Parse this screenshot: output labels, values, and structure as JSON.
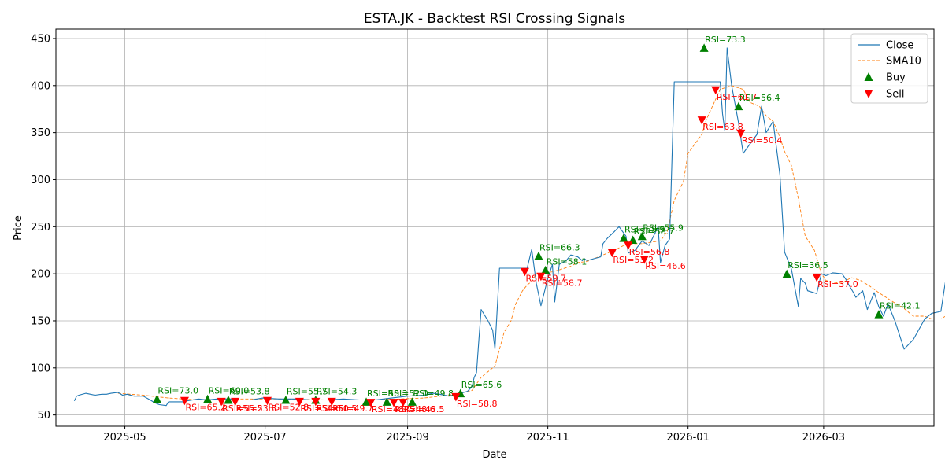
{
  "chart_data": {
    "type": "line",
    "title": "ESTA.JK - Backtest RSI Crossing Signals",
    "xlabel": "Date",
    "ylabel": "Price",
    "xlim": [
      "2025-04-01",
      "2026-04-18"
    ],
    "ylim": [
      38,
      460
    ],
    "x_ticks": [
      "2025-05",
      "2025-07",
      "2025-09",
      "2025-11",
      "2026-01",
      "2026-03"
    ],
    "y_ticks": [
      50,
      100,
      150,
      200,
      250,
      300,
      350,
      400,
      450
    ],
    "grid": true,
    "legend_position": "top-right",
    "legend": [
      "Close",
      "SMA10",
      "Buy",
      "Sell"
    ],
    "colors": {
      "close": "#1f77b4",
      "sma": "#ff7f0e",
      "buy": "#008000",
      "sell": "#ff0000"
    },
    "series": [
      {
        "name": "Close",
        "points": [
          [
            "2025-04-09",
            65
          ],
          [
            "2025-04-10",
            70
          ],
          [
            "2025-04-11",
            71
          ],
          [
            "2025-04-14",
            73
          ],
          [
            "2025-04-16",
            72
          ],
          [
            "2025-04-18",
            71
          ],
          [
            "2025-04-21",
            72
          ],
          [
            "2025-04-23",
            72
          ],
          [
            "2025-04-25",
            73
          ],
          [
            "2025-04-28",
            74
          ],
          [
            "2025-04-30",
            71
          ],
          [
            "2025-05-02",
            72
          ],
          [
            "2025-05-05",
            70
          ],
          [
            "2025-05-07",
            70
          ],
          [
            "2025-05-09",
            70
          ],
          [
            "2025-05-12",
            66
          ],
          [
            "2025-05-14",
            63
          ],
          [
            "2025-05-16",
            61
          ],
          [
            "2025-05-19",
            60
          ],
          [
            "2025-05-20",
            64
          ],
          [
            "2025-05-23",
            64
          ],
          [
            "2025-05-26",
            64
          ],
          [
            "2025-05-28",
            65
          ],
          [
            "2025-06-02",
            67
          ],
          [
            "2025-06-06",
            66
          ],
          [
            "2025-06-10",
            67
          ],
          [
            "2025-06-16",
            67
          ],
          [
            "2025-06-20",
            66
          ],
          [
            "2025-06-25",
            66
          ],
          [
            "2025-06-30",
            68
          ],
          [
            "2025-07-07",
            67
          ],
          [
            "2025-07-14",
            67
          ],
          [
            "2025-07-21",
            66
          ],
          [
            "2025-07-28",
            66
          ],
          [
            "2025-08-04",
            67
          ],
          [
            "2025-08-11",
            66
          ],
          [
            "2025-08-18",
            66
          ],
          [
            "2025-08-25",
            68
          ],
          [
            "2025-09-01",
            70
          ],
          [
            "2025-09-08",
            71
          ],
          [
            "2025-09-12",
            73
          ],
          [
            "2025-09-15",
            72
          ],
          [
            "2025-09-19",
            70
          ],
          [
            "2025-09-24",
            73
          ],
          [
            "2025-09-27",
            75
          ],
          [
            "2025-09-29",
            80
          ],
          [
            "2025-09-30",
            90
          ],
          [
            "2025-10-01",
            95
          ],
          [
            "2025-10-02",
            130
          ],
          [
            "2025-10-03",
            162
          ],
          [
            "2025-10-06",
            150
          ],
          [
            "2025-10-08",
            140
          ],
          [
            "2025-10-09",
            120
          ],
          [
            "2025-10-11",
            206
          ],
          [
            "2025-10-20",
            206
          ],
          [
            "2025-10-23",
            206
          ],
          [
            "2025-10-25",
            226
          ],
          [
            "2025-10-27",
            190
          ],
          [
            "2025-10-29",
            166
          ],
          [
            "2025-11-01",
            195
          ],
          [
            "2025-11-03",
            210
          ],
          [
            "2025-11-04",
            170
          ],
          [
            "2025-11-06",
            210
          ],
          [
            "2025-11-09",
            214
          ],
          [
            "2025-11-11",
            220
          ],
          [
            "2025-11-14",
            218
          ],
          [
            "2025-11-16",
            214
          ],
          [
            "2025-11-17",
            216
          ],
          [
            "2025-11-18",
            214
          ],
          [
            "2025-11-21",
            216
          ],
          [
            "2025-11-24",
            218
          ],
          [
            "2025-11-25",
            232
          ],
          [
            "2025-11-27",
            238
          ],
          [
            "2025-11-30",
            245
          ],
          [
            "2025-12-02",
            250
          ],
          [
            "2025-12-05",
            240
          ],
          [
            "2025-12-06",
            222
          ],
          [
            "2025-12-09",
            225
          ],
          [
            "2025-12-12",
            235
          ],
          [
            "2025-12-15",
            230
          ],
          [
            "2025-12-17",
            240
          ],
          [
            "2025-12-19",
            250
          ],
          [
            "2025-12-20",
            212
          ],
          [
            "2025-12-22",
            230
          ],
          [
            "2025-12-24",
            237
          ],
          [
            "2025-12-26",
            404
          ],
          [
            "2026-01-04",
            404
          ],
          [
            "2026-01-09",
            404
          ],
          [
            "2026-01-15",
            404
          ],
          [
            "2026-01-16",
            370
          ],
          [
            "2026-01-17",
            352
          ],
          [
            "2026-01-18",
            440
          ],
          [
            "2026-01-20",
            400
          ],
          [
            "2026-01-23",
            360
          ],
          [
            "2026-01-25",
            328
          ],
          [
            "2026-01-31",
            348
          ],
          [
            "2026-02-02",
            378
          ],
          [
            "2026-02-04",
            350
          ],
          [
            "2026-02-07",
            362
          ],
          [
            "2026-02-10",
            305
          ],
          [
            "2026-02-12",
            223
          ],
          [
            "2026-02-15",
            205
          ],
          [
            "2026-02-18",
            165
          ],
          [
            "2026-02-19",
            195
          ],
          [
            "2026-02-21",
            190
          ],
          [
            "2026-02-22",
            182
          ],
          [
            "2026-02-26",
            179
          ],
          [
            "2026-02-28",
            200
          ],
          [
            "2026-03-02",
            198
          ],
          [
            "2026-03-05",
            201
          ],
          [
            "2026-03-09",
            200
          ],
          [
            "2026-03-11",
            193
          ],
          [
            "2026-03-12",
            188
          ],
          [
            "2026-03-14",
            180
          ],
          [
            "2026-03-15",
            175
          ],
          [
            "2026-03-18",
            182
          ],
          [
            "2026-03-20",
            162
          ],
          [
            "2026-03-23",
            180
          ],
          [
            "2026-03-25",
            165
          ],
          [
            "2026-03-27",
            155
          ],
          [
            "2026-03-29",
            168
          ],
          [
            "2026-04-01",
            150
          ],
          [
            "2026-04-05",
            120
          ],
          [
            "2026-04-09",
            130
          ],
          [
            "2026-04-14",
            152
          ],
          [
            "2026-04-17",
            158
          ],
          [
            "2026-04-21",
            160
          ],
          [
            "2026-04-23",
            192
          ],
          [
            "2026-04-25",
            180
          ],
          [
            "2026-04-28",
            178
          ],
          [
            "2026-05-01",
            176
          ],
          [
            "2026-05-03",
            180
          ]
        ]
      },
      {
        "name": "SMA10",
        "points": [
          [
            "2025-04-28",
            73
          ],
          [
            "2025-05-09",
            71
          ],
          [
            "2025-05-20",
            68
          ],
          [
            "2025-06-02",
            66
          ],
          [
            "2025-06-16",
            67
          ],
          [
            "2025-07-07",
            67
          ],
          [
            "2025-07-28",
            66
          ],
          [
            "2025-08-18",
            66
          ],
          [
            "2025-09-08",
            68
          ],
          [
            "2025-09-19",
            71
          ],
          [
            "2025-09-29",
            76
          ],
          [
            "2025-10-03",
            90
          ],
          [
            "2025-10-06",
            96
          ],
          [
            "2025-10-09",
            102
          ],
          [
            "2025-10-11",
            120
          ],
          [
            "2025-10-13",
            138
          ],
          [
            "2025-10-16",
            150
          ],
          [
            "2025-10-18",
            168
          ],
          [
            "2025-10-21",
            182
          ],
          [
            "2025-10-23",
            188
          ],
          [
            "2025-10-25",
            192
          ],
          [
            "2025-10-27",
            200
          ],
          [
            "2025-10-30",
            201
          ],
          [
            "2025-11-03",
            202
          ],
          [
            "2025-11-07",
            205
          ],
          [
            "2025-11-11",
            208
          ],
          [
            "2025-11-14",
            212
          ],
          [
            "2025-11-18",
            213
          ],
          [
            "2025-11-21",
            216
          ],
          [
            "2025-11-25",
            220
          ],
          [
            "2025-11-30",
            225
          ],
          [
            "2025-12-04",
            230
          ],
          [
            "2025-12-08",
            232
          ],
          [
            "2025-12-12",
            232
          ],
          [
            "2025-12-17",
            234
          ],
          [
            "2025-12-20",
            235
          ],
          [
            "2025-12-23",
            245
          ],
          [
            "2025-12-26",
            278
          ],
          [
            "2025-12-30",
            298
          ],
          [
            "2026-01-01",
            328
          ],
          [
            "2026-01-04",
            338
          ],
          [
            "2026-01-07",
            348
          ],
          [
            "2026-01-09",
            364
          ],
          [
            "2026-01-12",
            380
          ],
          [
            "2026-01-15",
            396
          ],
          [
            "2026-01-20",
            400
          ],
          [
            "2026-01-25",
            396
          ],
          [
            "2026-01-28",
            382
          ],
          [
            "2026-02-01",
            378
          ],
          [
            "2026-02-04",
            368
          ],
          [
            "2026-02-07",
            362
          ],
          [
            "2026-02-10",
            345
          ],
          [
            "2026-02-12",
            330
          ],
          [
            "2026-02-15",
            315
          ],
          [
            "2026-02-18",
            280
          ],
          [
            "2026-02-21",
            240
          ],
          [
            "2026-02-25",
            225
          ],
          [
            "2026-02-28",
            200
          ],
          [
            "2026-03-02",
            193
          ],
          [
            "2026-03-05",
            191
          ],
          [
            "2026-03-09",
            190
          ],
          [
            "2026-03-13",
            196
          ],
          [
            "2026-03-17",
            193
          ],
          [
            "2026-03-21",
            187
          ],
          [
            "2026-03-25",
            180
          ],
          [
            "2026-03-30",
            172
          ],
          [
            "2026-04-05",
            163
          ],
          [
            "2026-04-09",
            155
          ],
          [
            "2026-04-14",
            155
          ],
          [
            "2026-04-17",
            152
          ],
          [
            "2026-04-21",
            152
          ],
          [
            "2026-04-25",
            158
          ],
          [
            "2026-04-28",
            165
          ]
        ]
      }
    ],
    "buy_signals": [
      {
        "date": "2025-05-15",
        "price": 67,
        "label": "RSI=73.0"
      },
      {
        "date": "2025-06-06",
        "price": 67,
        "label": "RSI=60.0"
      },
      {
        "date": "2025-06-15",
        "price": 66,
        "label": "RSI=53.8"
      },
      {
        "date": "2025-07-10",
        "price": 66,
        "label": "RSI=55.7"
      },
      {
        "date": "2025-07-23",
        "price": 66,
        "label": "RSI=54.3"
      },
      {
        "date": "2025-08-14",
        "price": 64,
        "label": "RSI=50.3"
      },
      {
        "date": "2025-08-23",
        "price": 64,
        "label": "RSI=52.0"
      },
      {
        "date": "2025-09-03",
        "price": 64,
        "label": "RSI=49.8"
      },
      {
        "date": "2025-09-24",
        "price": 73,
        "label": "RSI=65.6"
      },
      {
        "date": "2025-10-28",
        "price": 219,
        "label": "RSI=66.3"
      },
      {
        "date": "2025-10-31",
        "price": 204,
        "label": "RSI=58.1"
      },
      {
        "date": "2025-12-04",
        "price": 238,
        "label": "RSI=55.9"
      },
      {
        "date": "2025-12-08",
        "price": 236,
        "label": "RSI=58.7"
      },
      {
        "date": "2025-12-12",
        "price": 240,
        "label": "RSI=55.9"
      },
      {
        "date": "2026-01-08",
        "price": 440,
        "label": "RSI=73.3"
      },
      {
        "date": "2026-01-23",
        "price": 378,
        "label": "RSI=56.4"
      },
      {
        "date": "2026-02-13",
        "price": 200,
        "label": "RSI=36.5"
      },
      {
        "date": "2026-03-25",
        "price": 157,
        "label": "RSI=42.1"
      }
    ],
    "sell_signals": [
      {
        "date": "2025-05-27",
        "price": 65,
        "label": "RSI=65.2"
      },
      {
        "date": "2025-06-12",
        "price": 64,
        "label": "RSI=55.2"
      },
      {
        "date": "2025-06-18",
        "price": 64,
        "label": "RSI=53.8"
      },
      {
        "date": "2025-07-02",
        "price": 65,
        "label": "RSI=52.8"
      },
      {
        "date": "2025-07-16",
        "price": 64,
        "label": "RSI=54.6"
      },
      {
        "date": "2025-07-23",
        "price": 64,
        "label": "RSI=50.5"
      },
      {
        "date": "2025-07-30",
        "price": 64,
        "label": "RSI=49.7"
      },
      {
        "date": "2025-08-16",
        "price": 63,
        "label": "RSI=48.7"
      },
      {
        "date": "2025-08-26",
        "price": 63,
        "label": "RSI=48.6"
      },
      {
        "date": "2025-08-30",
        "price": 63,
        "label": "RSI=43.5"
      },
      {
        "date": "2025-09-22",
        "price": 69,
        "label": "RSI=58.8"
      },
      {
        "date": "2025-10-22",
        "price": 202,
        "label": "RSI=59.7"
      },
      {
        "date": "2025-10-29",
        "price": 197,
        "label": "RSI=58.7"
      },
      {
        "date": "2025-11-29",
        "price": 222,
        "label": "RSI=53.2"
      },
      {
        "date": "2025-12-06",
        "price": 230,
        "label": "RSI=56.8"
      },
      {
        "date": "2025-12-13",
        "price": 215,
        "label": "RSI=46.6"
      },
      {
        "date": "2026-01-07",
        "price": 363,
        "label": "RSI=63.8"
      },
      {
        "date": "2026-01-13",
        "price": 395,
        "label": "RSI=61.7"
      },
      {
        "date": "2026-01-24",
        "price": 349,
        "label": "RSI=50.4"
      },
      {
        "date": "2026-02-26",
        "price": 196,
        "label": "RSI=37.0"
      }
    ]
  }
}
